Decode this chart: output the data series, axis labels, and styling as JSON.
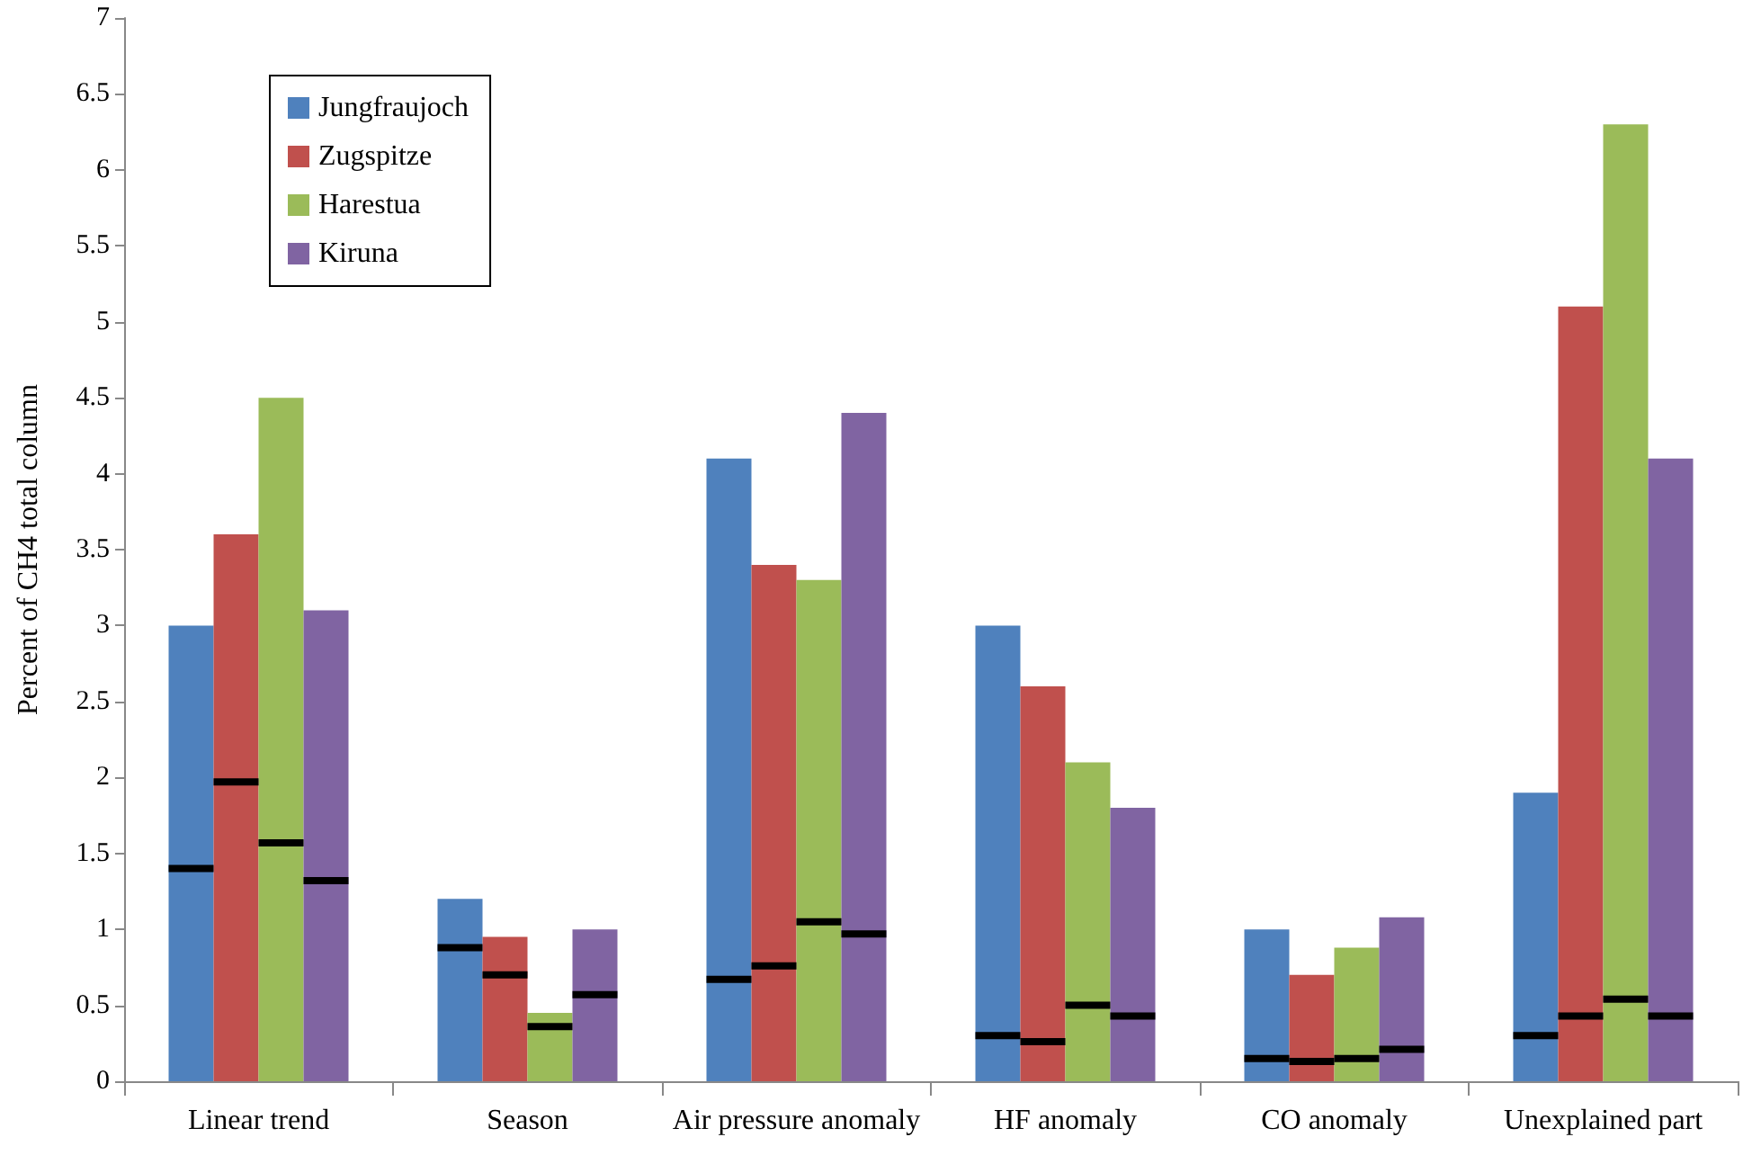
{
  "chart_data": {
    "type": "bar",
    "ylabel": "Percent of CH4 total column",
    "categories": [
      "Linear trend",
      "Season",
      "Air pressure anomaly",
      "HF anomaly",
      "CO anomaly",
      "Unexplained part"
    ],
    "series": [
      {
        "name": "Jungfraujoch",
        "color": "#4f81bd",
        "values": [
          3.0,
          1.2,
          4.1,
          3.0,
          1.0,
          1.9
        ],
        "errors": [
          [
            1.4,
            1.4
          ],
          [
            0.88,
            0.88
          ],
          [
            0.67,
            0.67
          ],
          [
            0.3,
            0.3
          ],
          [
            0.15,
            0.15
          ],
          [
            0.3,
            0.3
          ]
        ]
      },
      {
        "name": "Zugspitze",
        "color": "#c0504d",
        "values": [
          3.6,
          0.95,
          3.4,
          2.6,
          0.7,
          5.1
        ],
        "errors": [
          [
            1.97,
            1.97
          ],
          [
            0.7,
            0.7
          ],
          [
            0.76,
            0.76
          ],
          [
            0.26,
            0.26
          ],
          [
            0.13,
            0.13
          ],
          [
            0.43,
            0.43
          ]
        ]
      },
      {
        "name": "Harestua",
        "color": "#9bbb59",
        "values": [
          4.5,
          0.45,
          3.3,
          2.1,
          0.88,
          6.3
        ],
        "errors": [
          [
            1.57,
            1.57
          ],
          [
            0.36,
            0.36
          ],
          [
            1.05,
            1.05
          ],
          [
            0.5,
            0.5
          ],
          [
            0.15,
            0.15
          ],
          [
            0.54,
            0.54
          ]
        ]
      },
      {
        "name": "Kiruna",
        "color": "#8064a2",
        "values": [
          3.1,
          1.0,
          4.4,
          1.8,
          1.08,
          4.1
        ],
        "errors": [
          [
            1.32,
            1.32
          ],
          [
            0.57,
            0.57
          ],
          [
            0.97,
            0.97
          ],
          [
            0.43,
            0.43
          ],
          [
            0.21,
            0.21
          ],
          [
            0.43,
            0.43
          ]
        ]
      }
    ],
    "ylim": [
      0,
      7
    ],
    "yticks": [
      0,
      0.5,
      1,
      1.5,
      2,
      2.5,
      3,
      3.5,
      4,
      4.5,
      5,
      5.5,
      6,
      6.5,
      7
    ],
    "grid": false,
    "legend": "top left"
  }
}
